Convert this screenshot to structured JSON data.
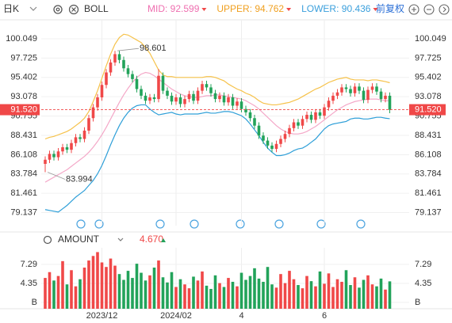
{
  "toolbar": {
    "period": "日K",
    "indicator": "BOLL",
    "adjust": "前复权"
  },
  "chart_data": [
    {
      "type": "candlestick",
      "up_color": "#f04848",
      "down_color": "#22a35a",
      "open": [
        85.0,
        85.5,
        86.2,
        85.8,
        86.5,
        87.0,
        86.7,
        87.5,
        88.2,
        88.0,
        89.0,
        90.5,
        91.8,
        93.0,
        94.5,
        96.0,
        97.2,
        98.2,
        97.5,
        96.5,
        95.8,
        95.2,
        94.0,
        93.2,
        92.6,
        93.0,
        92.8,
        95.6,
        93.8,
        93.2,
        92.5,
        93.0,
        92.2,
        92.8,
        93.4,
        92.6,
        93.8,
        94.6,
        94.2,
        93.5,
        92.8,
        93.2,
        92.4,
        93.0,
        92.0,
        92.5,
        91.6,
        91.2,
        90.5,
        89.6,
        88.4,
        87.8,
        87.2,
        86.8,
        87.4,
        88.0,
        88.6,
        89.3,
        90.0,
        89.6,
        90.4,
        90.9,
        90.3,
        91.2,
        90.8,
        91.8,
        92.6,
        93.2,
        93.6,
        94.2,
        94.0,
        93.5,
        94.3,
        93.8,
        92.7,
        93.9,
        94.3,
        93.7,
        92.8,
        93.2
      ],
      "high": [
        85.9,
        86.6,
        86.6,
        86.9,
        87.4,
        87.4,
        87.9,
        88.6,
        88.6,
        89.4,
        90.9,
        92.2,
        93.4,
        94.9,
        96.4,
        97.6,
        98.601,
        98.6,
        97.9,
        96.9,
        96.2,
        95.6,
        94.4,
        93.6,
        93.4,
        93.4,
        96.4,
        96.0,
        94.2,
        93.6,
        93.4,
        93.4,
        93.2,
        93.8,
        93.8,
        94.2,
        95.0,
        95.0,
        94.6,
        93.9,
        93.6,
        93.6,
        93.4,
        93.4,
        92.9,
        92.9,
        92.0,
        91.6,
        90.9,
        90.0,
        88.8,
        88.2,
        87.6,
        87.8,
        88.4,
        89.0,
        89.7,
        90.4,
        90.4,
        90.8,
        91.3,
        91.3,
        91.6,
        91.6,
        92.2,
        93.0,
        93.6,
        94.0,
        94.6,
        94.6,
        94.4,
        94.7,
        94.7,
        94.2,
        94.3,
        94.7,
        94.7,
        94.1,
        93.6,
        93.6
      ],
      "low": [
        83.994,
        85.1,
        85.4,
        85.4,
        86.1,
        86.3,
        86.3,
        87.1,
        87.6,
        87.6,
        88.6,
        90.1,
        91.4,
        92.6,
        94.1,
        95.6,
        96.8,
        97.1,
        96.1,
        95.4,
        94.8,
        93.6,
        92.8,
        92.2,
        92.2,
        92.4,
        92.4,
        93.4,
        92.8,
        92.1,
        92.1,
        91.8,
        91.8,
        92.4,
        92.2,
        92.2,
        93.4,
        93.8,
        93.1,
        92.4,
        92.4,
        92.0,
        92.0,
        91.6,
        91.6,
        91.2,
        90.8,
        90.1,
        89.2,
        88.0,
        87.4,
        86.8,
        86.4,
        86.4,
        87.0,
        87.6,
        88.2,
        88.9,
        89.2,
        89.2,
        90.0,
        89.9,
        89.9,
        90.4,
        90.4,
        91.4,
        92.2,
        92.8,
        93.2,
        93.6,
        93.1,
        93.1,
        93.4,
        92.3,
        92.3,
        93.5,
        93.3,
        92.4,
        92.4,
        91.1
      ],
      "close": [
        85.5,
        86.2,
        85.8,
        86.5,
        87.0,
        86.7,
        87.5,
        88.2,
        88.0,
        89.0,
        90.5,
        91.8,
        93.0,
        94.5,
        96.0,
        97.2,
        98.2,
        97.5,
        96.5,
        95.8,
        95.2,
        94.0,
        93.2,
        92.6,
        93.0,
        92.8,
        95.6,
        93.8,
        93.2,
        92.5,
        93.0,
        92.2,
        92.8,
        93.4,
        92.6,
        93.8,
        94.6,
        94.2,
        93.5,
        92.8,
        93.2,
        92.4,
        93.0,
        92.0,
        92.5,
        91.6,
        91.2,
        90.5,
        89.6,
        88.4,
        87.8,
        87.2,
        86.8,
        87.4,
        88.0,
        88.6,
        89.3,
        90.0,
        89.6,
        90.4,
        90.9,
        90.3,
        91.2,
        90.8,
        91.8,
        92.6,
        93.2,
        93.6,
        94.2,
        94.0,
        93.5,
        94.3,
        93.8,
        92.7,
        93.9,
        94.3,
        93.7,
        92.8,
        93.2,
        91.52
      ],
      "last_label": "91.520",
      "series": [
        {
          "name": "MID",
          "label": "MID: 92.599",
          "color": "#ef6fb0",
          "line_color": "#f4a8c8",
          "values": [
            82.8,
            83.1,
            83.4,
            83.7,
            84.0,
            84.3,
            84.7,
            85.1,
            85.5,
            85.9,
            86.4,
            87.0,
            87.7,
            88.5,
            89.4,
            90.4,
            91.4,
            92.4,
            93.3,
            94.1,
            94.8,
            95.4,
            95.8,
            96.0,
            95.9,
            95.6,
            95.2,
            94.8,
            94.4,
            94.0,
            93.7,
            93.4,
            93.2,
            93.1,
            93.0,
            93.0,
            93.1,
            93.2,
            93.2,
            93.3,
            93.3,
            93.2,
            93.1,
            93.0,
            92.9,
            92.8,
            92.6,
            92.3,
            92.0,
            91.6,
            91.1,
            90.6,
            90.1,
            89.6,
            89.2,
            88.9,
            88.7,
            88.6,
            88.6,
            88.7,
            88.9,
            89.2,
            89.5,
            89.9,
            90.3,
            90.7,
            91.1,
            91.5,
            91.8,
            92.1,
            92.3,
            92.5,
            92.6,
            92.7,
            92.8,
            92.8,
            92.8,
            92.7,
            92.6,
            92.599
          ]
        },
        {
          "name": "UPPER",
          "label": "UPPER: 94.762",
          "color": "#f0a020",
          "line_color": "#f6c24a",
          "values": [
            88.0,
            88.2,
            88.3,
            88.5,
            88.7,
            88.9,
            89.2,
            89.6,
            90.0,
            90.5,
            91.3,
            92.5,
            93.8,
            95.3,
            96.8,
            98.2,
            99.4,
            100.2,
            100.6,
            100.5,
            100.2,
            99.9,
            99.6,
            99.0,
            98.3,
            97.3,
            96.3,
            95.7,
            95.5,
            95.5,
            95.4,
            95.4,
            95.4,
            95.4,
            95.4,
            95.4,
            95.4,
            95.5,
            95.5,
            95.4,
            95.2,
            95.0,
            94.6,
            94.3,
            94.0,
            93.8,
            93.5,
            93.3,
            93.0,
            92.6,
            92.3,
            92.2,
            92.1,
            92.1,
            92.2,
            92.3,
            92.4,
            92.6,
            92.8,
            93.1,
            93.4,
            93.7,
            94.0,
            94.2,
            94.5,
            94.8,
            95.0,
            95.2,
            95.3,
            95.4,
            95.2,
            95.1,
            95.1,
            95.1,
            95.0,
            95.1,
            95.1,
            95.0,
            94.9,
            94.762
          ]
        },
        {
          "name": "LOWER",
          "label": "LOWER: 90.436",
          "color": "#3a9fdc",
          "line_color": "#2e9fd8",
          "values": [
            79.5,
            79.4,
            79.3,
            79.2,
            79.6,
            80.0,
            80.5,
            81.0,
            81.4,
            81.8,
            82.4,
            83.0,
            83.8,
            84.8,
            86.0,
            87.3,
            88.5,
            89.6,
            90.5,
            91.2,
            91.7,
            92.0,
            92.1,
            92.1,
            91.6,
            91.2,
            90.9,
            91.0,
            91.1,
            91.2,
            91.0,
            90.9,
            91.0,
            91.0,
            91.0,
            91.0,
            91.1,
            91.2,
            91.1,
            91.1,
            91.2,
            91.3,
            91.3,
            91.2,
            91.0,
            90.8,
            90.4,
            89.8,
            89.1,
            88.4,
            87.6,
            86.9,
            86.4,
            86.0,
            86.0,
            86.1,
            86.3,
            86.6,
            86.8,
            86.9,
            87.2,
            87.6,
            88.0,
            88.6,
            89.2,
            89.6,
            89.8,
            89.9,
            90.0,
            90.1,
            90.4,
            90.5,
            90.5,
            90.4,
            90.4,
            90.5,
            90.6,
            90.6,
            90.5,
            90.436
          ]
        }
      ],
      "ylim": [
        77.57,
        102.335
      ],
      "yticks": [
        100.049,
        97.725,
        95.402,
        93.078,
        90.755,
        88.431,
        86.108,
        83.784,
        81.461,
        79.137
      ],
      "grid": true
    },
    {
      "type": "bar",
      "title": "AMOUNT",
      "last_label": "4.670",
      "values": [
        5.2,
        6.1,
        4.8,
        5.5,
        7.8,
        4.2,
        6.4,
        3.9,
        5.0,
        6.8,
        7.9,
        8.6,
        9.2,
        7.6,
        6.9,
        8.2,
        7.1,
        5.8,
        4.9,
        6.3,
        5.2,
        7.4,
        6.0,
        4.8,
        5.6,
        6.8,
        7.9,
        5.3,
        4.5,
        6.1,
        3.8,
        5.0,
        4.2,
        3.6,
        5.4,
        4.8,
        6.2,
        4.0,
        3.5,
        5.6,
        4.4,
        3.8,
        5.2,
        4.6,
        3.9,
        6.0,
        4.9,
        5.5,
        6.7,
        5.1,
        4.6,
        6.9,
        4.2,
        3.7,
        5.8,
        4.4,
        6.3,
        5.0,
        4.1,
        3.6,
        5.5,
        4.7,
        3.9,
        6.2,
        4.3,
        5.9,
        3.8,
        5.0,
        4.6,
        6.4,
        4.1,
        5.3,
        3.7,
        4.9,
        5.6,
        4.2,
        3.9,
        5.1,
        3.4,
        4.67
      ],
      "ylim": [
        0.43,
        9.62
      ],
      "yticks": [
        7.29,
        4.35,
        {
          "value": 1.41,
          "label": "B"
        }
      ],
      "xticks": [
        {
          "value": 13,
          "label": "2023/12"
        },
        {
          "value": 30,
          "label": "2024/02"
        },
        {
          "value": 45,
          "label": "4"
        },
        {
          "value": 64,
          "label": "6"
        }
      ]
    }
  ]
}
